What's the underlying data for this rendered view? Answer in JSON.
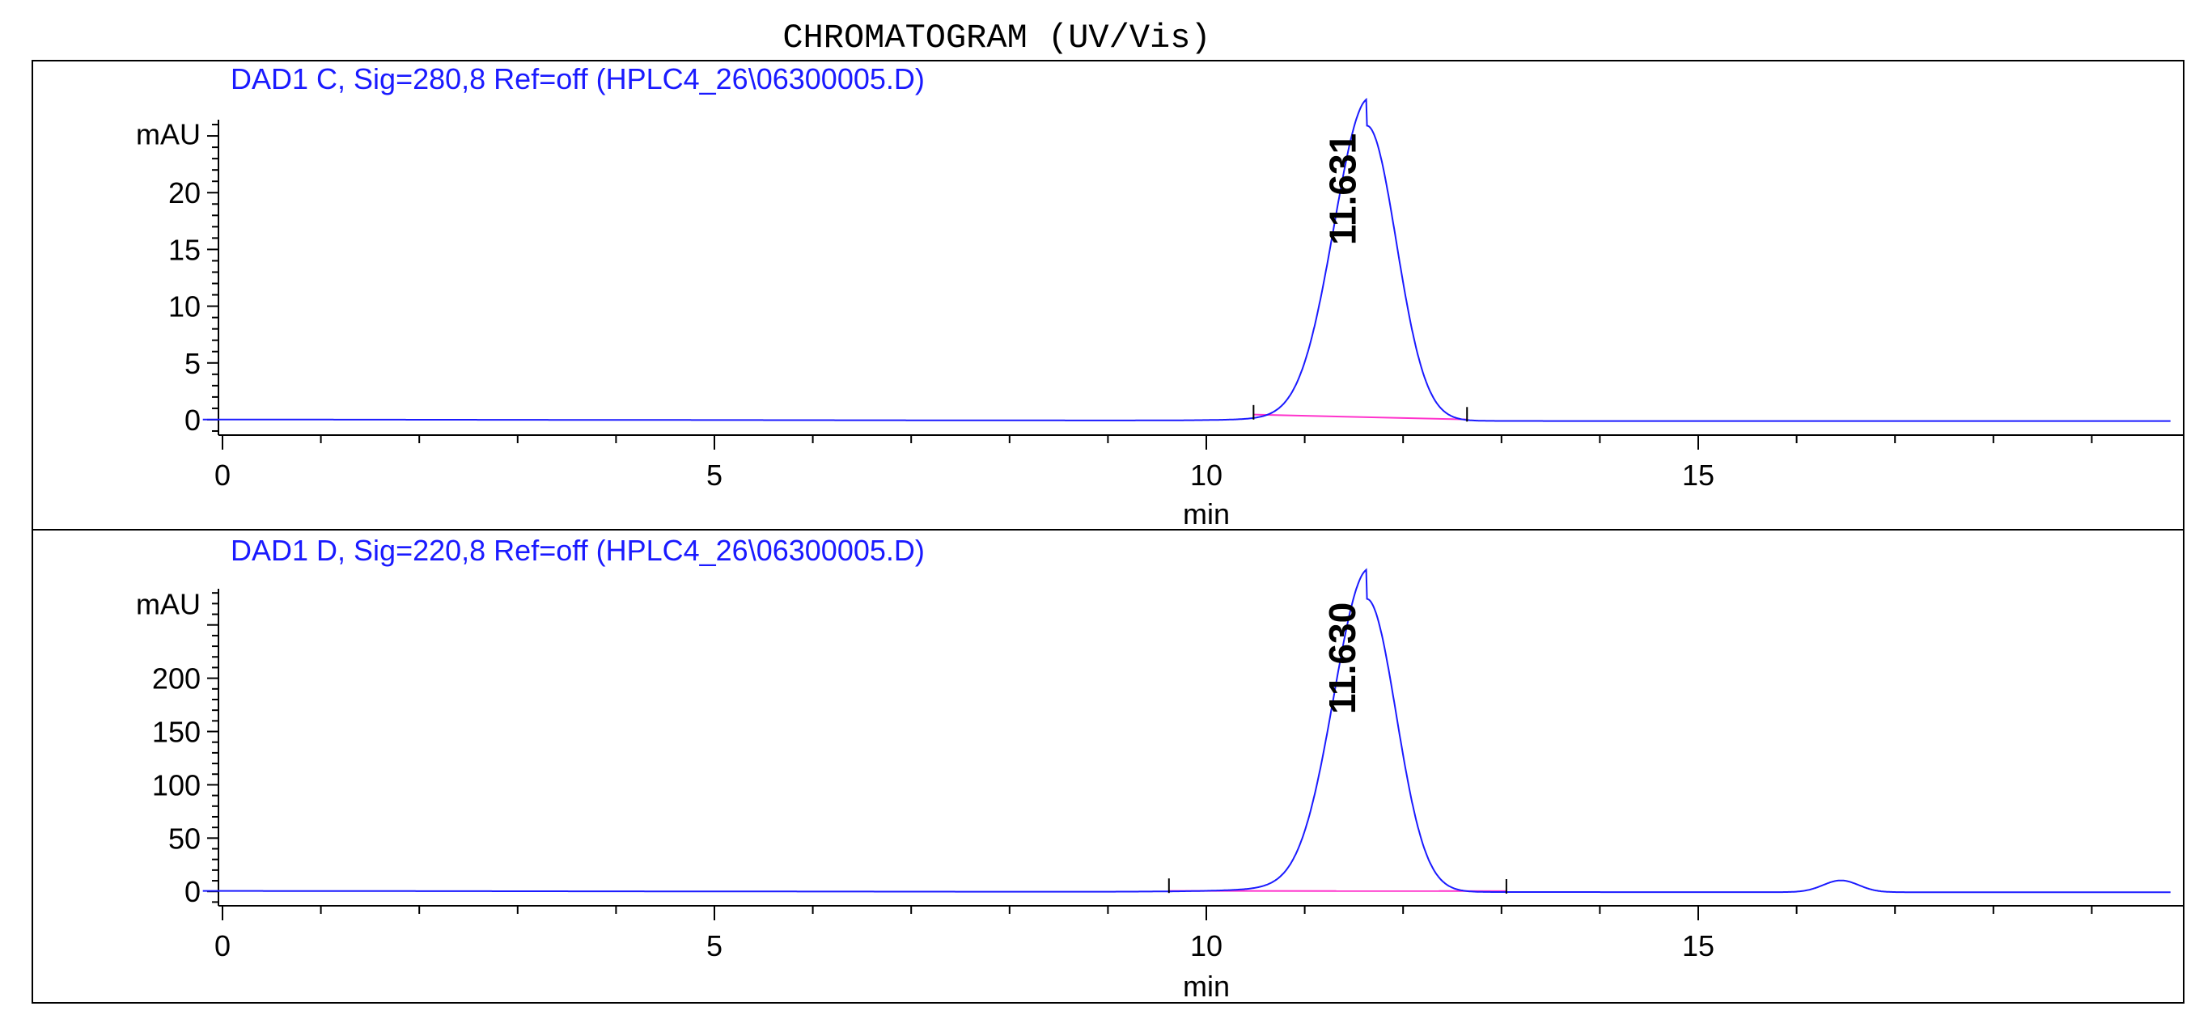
{
  "title": "CHROMATOGRAM (UV/Vis)",
  "colors": {
    "signal": "#1a1aff",
    "baseline": "#ff33cc",
    "title_text": "#1a1aff",
    "axis": "#000000"
  },
  "chart_data": [
    {
      "type": "line",
      "title": "DAD1 C, Sig=280,8 Ref=off (HPLC4_26\\06300005.D)",
      "xlabel": "min",
      "ylabel": "mAU",
      "xlim": [
        -0.2,
        19.8
      ],
      "ylim": [
        -1.5,
        27
      ],
      "xticks": [
        0,
        5,
        10,
        15
      ],
      "xtick_labels": [
        "0",
        "5",
        "10",
        "15"
      ],
      "yticks": [
        0,
        5,
        10,
        15,
        20
      ],
      "ytick_labels": [
        "0",
        "5",
        "10",
        "15",
        "20"
      ],
      "ylabel_value": 25.2,
      "series": [
        {
          "peaks": [
            {
              "rt": 11.631,
              "height": 26.0,
              "sigma_left": 0.34,
              "sigma_right": 0.3,
              "tail_amp": 0.09,
              "tail_tau": 0.42
            }
          ],
          "drift": [
            [
              -0.2,
              0.02
            ],
            [
              10.0,
              -0.08
            ],
            [
              14.0,
              -0.12
            ],
            [
              19.8,
              -0.12
            ]
          ]
        }
      ],
      "baselines": [
        {
          "x": [
            10.48,
            12.65
          ],
          "y": [
            0.45,
            0.02
          ]
        }
      ],
      "integration_marks": [
        10.48,
        12.65
      ],
      "peak_labels": [
        {
          "rt": 11.631,
          "text": "11.631"
        }
      ]
    },
    {
      "type": "line",
      "title": "DAD1 D, Sig=220,8 Ref=off (HPLC4_26\\06300005.D)",
      "xlabel": "min",
      "ylabel": "mAU",
      "xlim": [
        -0.2,
        19.8
      ],
      "ylim": [
        -15,
        290
      ],
      "xticks": [
        0,
        5,
        10,
        15
      ],
      "xtick_labels": [
        "0",
        "5",
        "10",
        "15"
      ],
      "yticks": [
        0,
        50,
        100,
        150,
        200
      ],
      "ytick_labels": [
        "0",
        "50",
        "100",
        "150",
        "200"
      ],
      "ylabel_value": 270,
      "series": [
        {
          "peaks": [
            {
              "rt": 11.63,
              "height": 275.0,
              "sigma_left": 0.34,
              "sigma_right": 0.3,
              "tail_amp": 0.1,
              "tail_tau": 0.5
            },
            {
              "rt": 16.45,
              "height": 11.0,
              "sigma_left": 0.18,
              "sigma_right": 0.18,
              "tail_amp": 0,
              "tail_tau": 0.3
            }
          ],
          "drift": [
            [
              -0.2,
              0.5
            ],
            [
              10.0,
              -0.5
            ],
            [
              19.8,
              -0.8
            ]
          ]
        }
      ],
      "baselines": [
        {
          "x": [
            9.62,
            13.05
          ],
          "y": [
            0.5,
            0.3
          ]
        }
      ],
      "integration_marks": [
        9.62,
        13.05
      ],
      "peak_labels": [
        {
          "rt": 11.63,
          "text": "11.630"
        }
      ]
    }
  ]
}
